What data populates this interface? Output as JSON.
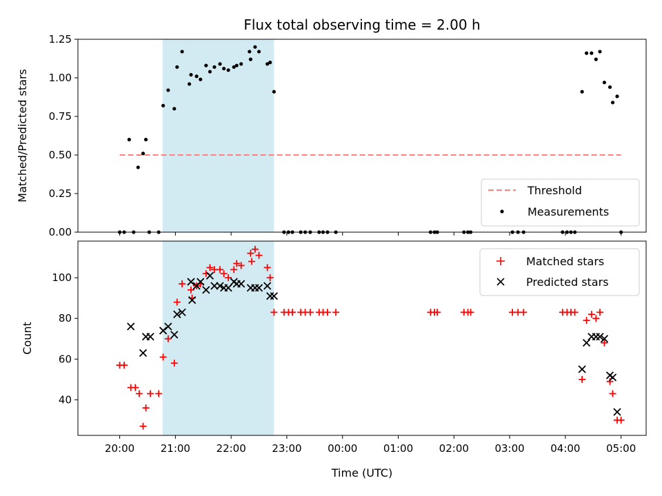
{
  "chart_data": [
    {
      "type": "scatter",
      "title": "Flux total observing time = 2.00 h",
      "xlabel": "",
      "ylabel": "Matched/Predicted stars",
      "xlim_hours": [
        19.25,
        29.45
      ],
      "ylim": [
        0,
        1.25
      ],
      "yticks": [
        0.0,
        0.25,
        0.5,
        0.75,
        1.0,
        1.25
      ],
      "ytick_labels": [
        "0.00",
        "0.25",
        "0.50",
        "0.75",
        "1.00",
        "1.25"
      ],
      "shaded_span_hours": [
        20.77,
        22.77
      ],
      "shade_color": "#add8e6",
      "legend_position": "lower-right",
      "threshold": {
        "name": "Threshold",
        "value": 0.5,
        "x_hours": [
          20.0,
          29.0
        ],
        "color": "#ff7f7f"
      },
      "measurements": {
        "name": "Measurements",
        "color": "#000000",
        "x_hours": [
          20.0,
          20.08,
          20.17,
          20.25,
          20.33,
          20.42,
          20.47,
          20.53,
          20.7,
          20.78,
          20.87,
          20.98,
          21.03,
          21.12,
          21.25,
          21.28,
          21.38,
          21.45,
          21.55,
          21.62,
          21.7,
          21.8,
          21.87,
          21.95,
          22.05,
          22.1,
          22.18,
          22.33,
          22.35,
          22.43,
          22.5,
          22.65,
          22.7,
          22.77,
          22.95,
          23.03,
          23.1,
          23.25,
          23.33,
          23.42,
          23.58,
          23.65,
          23.73,
          23.88,
          25.58,
          25.65,
          25.7,
          26.18,
          26.25,
          26.3,
          27.05,
          27.15,
          27.25,
          27.95,
          28.03,
          28.1,
          28.17,
          28.3,
          28.38,
          28.47,
          28.55,
          28.62,
          28.7,
          28.8,
          28.85,
          28.93,
          29.0
        ],
        "y": [
          0.0,
          0.0,
          0.6,
          0.0,
          0.42,
          0.51,
          0.6,
          0.0,
          0.0,
          0.82,
          0.92,
          0.8,
          1.07,
          1.17,
          0.96,
          1.02,
          1.01,
          0.99,
          1.08,
          1.04,
          1.07,
          1.09,
          1.06,
          1.05,
          1.07,
          1.08,
          1.09,
          1.17,
          1.12,
          1.2,
          1.17,
          1.09,
          1.1,
          0.91,
          0.0,
          0.0,
          0.0,
          0.0,
          0.0,
          0.0,
          0.0,
          0.0,
          0.0,
          0.0,
          0.0,
          0.0,
          0.0,
          0.0,
          0.0,
          0.0,
          0.0,
          0.0,
          0.0,
          0.0,
          0.0,
          0.0,
          0.0,
          0.91,
          1.16,
          1.16,
          1.12,
          1.17,
          0.97,
          0.94,
          0.84,
          0.88,
          0.0
        ]
      }
    },
    {
      "type": "scatter",
      "title": "",
      "xlabel": "Time (UTC)",
      "ylabel": "Count",
      "xlim_hours": [
        19.25,
        29.45
      ],
      "ylim": [
        22.5,
        118
      ],
      "yticks": [
        40,
        60,
        80,
        100
      ],
      "ytick_labels": [
        "40",
        "60",
        "80",
        "100"
      ],
      "xticks_hours": [
        20,
        21,
        22,
        23,
        24,
        25,
        26,
        27,
        28,
        29
      ],
      "xtick_labels": [
        "20:00",
        "21:00",
        "22:00",
        "23:00",
        "00:00",
        "01:00",
        "02:00",
        "03:00",
        "04:00",
        "05:00"
      ],
      "shaded_span_hours": [
        20.77,
        22.77
      ],
      "shade_color": "#add8e6",
      "legend_position": "upper-right",
      "series": [
        {
          "name": "Matched stars",
          "marker": "+",
          "color": "#ff0000",
          "x_hours": [
            20.0,
            20.08,
            20.2,
            20.28,
            20.35,
            20.42,
            20.47,
            20.55,
            20.7,
            20.78,
            20.87,
            20.98,
            21.03,
            21.12,
            21.28,
            21.3,
            21.38,
            21.45,
            21.55,
            21.62,
            21.7,
            21.8,
            21.87,
            21.95,
            22.05,
            22.1,
            22.18,
            22.35,
            22.37,
            22.43,
            22.5,
            22.65,
            22.7,
            22.77,
            22.95,
            23.03,
            23.1,
            23.25,
            23.33,
            23.42,
            23.58,
            23.65,
            23.73,
            23.88,
            25.58,
            25.65,
            25.7,
            26.18,
            26.25,
            26.3,
            27.05,
            27.15,
            27.25,
            27.95,
            28.03,
            28.1,
            28.17,
            28.3,
            28.38,
            28.47,
            28.55,
            28.62,
            28.7,
            28.8,
            28.85,
            28.93,
            29.0
          ],
          "y": [
            57,
            57,
            46,
            46,
            43,
            27,
            36,
            43,
            43,
            61,
            70,
            58,
            88,
            97,
            94,
            90,
            96,
            97,
            102,
            105,
            104,
            104,
            102,
            100,
            104,
            107,
            106,
            112,
            108,
            114,
            111,
            105,
            100,
            83,
            83,
            83,
            83,
            83,
            83,
            83,
            83,
            83,
            83,
            83,
            83,
            83,
            83,
            83,
            83,
            83,
            83,
            83,
            83,
            83,
            83,
            83,
            83,
            50,
            79,
            82,
            80,
            83,
            68,
            49,
            43,
            30,
            30
          ]
        },
        {
          "name": "Predicted stars",
          "marker": "x",
          "color": "#000000",
          "x_hours": [
            20.2,
            20.42,
            20.47,
            20.55,
            20.78,
            20.87,
            20.98,
            21.03,
            21.12,
            21.28,
            21.3,
            21.38,
            21.45,
            21.55,
            21.62,
            21.7,
            21.8,
            21.87,
            21.95,
            22.05,
            22.1,
            22.18,
            22.35,
            22.43,
            22.5,
            22.65,
            22.7,
            22.77,
            28.3,
            28.38,
            28.47,
            28.55,
            28.62,
            28.7,
            28.8,
            28.85,
            28.93
          ],
          "y": [
            76,
            63,
            71,
            71,
            74,
            76,
            72,
            82,
            83,
            98,
            89,
            96,
            98,
            94,
            101,
            96,
            96,
            95,
            95,
            98,
            97,
            97,
            95,
            95,
            95,
            96,
            91,
            91,
            55,
            68,
            71,
            71,
            71,
            70,
            52,
            51,
            34
          ]
        }
      ]
    }
  ]
}
